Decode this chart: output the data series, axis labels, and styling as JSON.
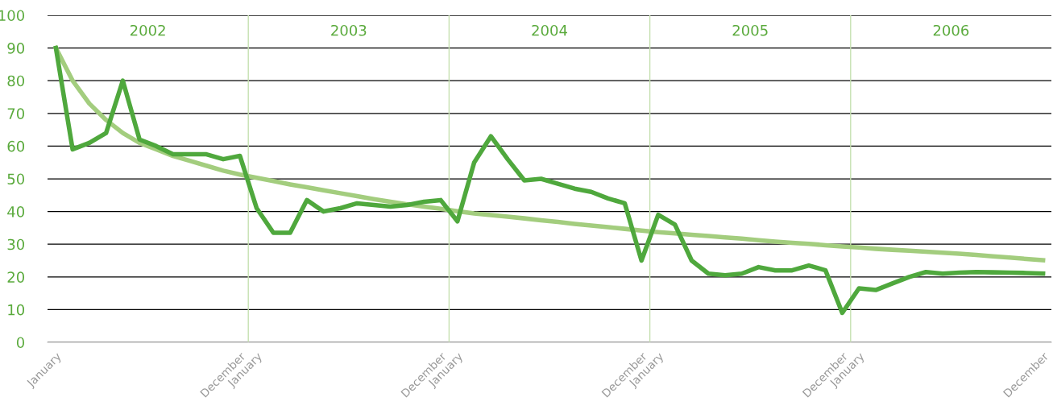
{
  "chart_data": {
    "type": "line",
    "categories": [
      "January",
      null,
      null,
      null,
      null,
      null,
      null,
      null,
      null,
      null,
      null,
      "December",
      "January",
      null,
      null,
      null,
      null,
      null,
      null,
      null,
      null,
      null,
      null,
      "December",
      "January",
      null,
      null,
      null,
      null,
      null,
      null,
      null,
      null,
      null,
      null,
      "December",
      "January",
      null,
      null,
      null,
      null,
      null,
      null,
      null,
      null,
      null,
      null,
      "December",
      "January",
      null,
      null,
      null,
      null,
      null,
      null,
      null,
      null,
      null,
      null,
      "December"
    ],
    "series": [
      {
        "color": "#4fa83d",
        "values": [
          90,
          59,
          61,
          64,
          80,
          62,
          60,
          57.5,
          57.5,
          57.5,
          56,
          57,
          41,
          33.5,
          33.5,
          43.5,
          40,
          41,
          42.5,
          42,
          41.5,
          42,
          43,
          43.5,
          37,
          55,
          63,
          56,
          49.5,
          50,
          48.5,
          47,
          46,
          44,
          42.5,
          25,
          39,
          36,
          25,
          21,
          20.5,
          21,
          23,
          22,
          22,
          23.5,
          22,
          9,
          16.5,
          16,
          18,
          20,
          21.5,
          21,
          21.3,
          21.5,
          21.4,
          21.3,
          21.2,
          21
        ]
      },
      {
        "color": "#a3cd7e",
        "values": [
          90,
          80,
          73,
          68,
          64,
          61,
          59,
          57,
          55.5,
          54,
          52.5,
          51.3,
          50.3,
          49.3,
          48.3,
          47.4,
          46.5,
          45.6,
          44.7,
          43.8,
          43,
          42.2,
          41.5,
          40.8,
          40.1,
          39.4,
          38.9,
          38.4,
          37.9,
          37.3,
          36.8,
          36.2,
          35.7,
          35.2,
          34.7,
          34.2,
          33.7,
          33.3,
          32.9,
          32.5,
          32.1,
          31.7,
          31.2,
          30.8,
          30.4,
          30.1,
          29.7,
          29.3,
          29,
          28.6,
          28.3,
          28,
          27.7,
          27.4,
          27.1,
          26.7,
          26.3,
          25.9,
          25.5,
          25.1
        ]
      }
    ],
    "ylim": [
      0,
      100
    ],
    "yticks": [
      0,
      10,
      20,
      30,
      40,
      50,
      60,
      70,
      80,
      90,
      100
    ],
    "grid": "y",
    "annotations": [
      "2002",
      "2003",
      "2004",
      "2005",
      "2006"
    ],
    "line_style": "solid",
    "marker": "none"
  }
}
